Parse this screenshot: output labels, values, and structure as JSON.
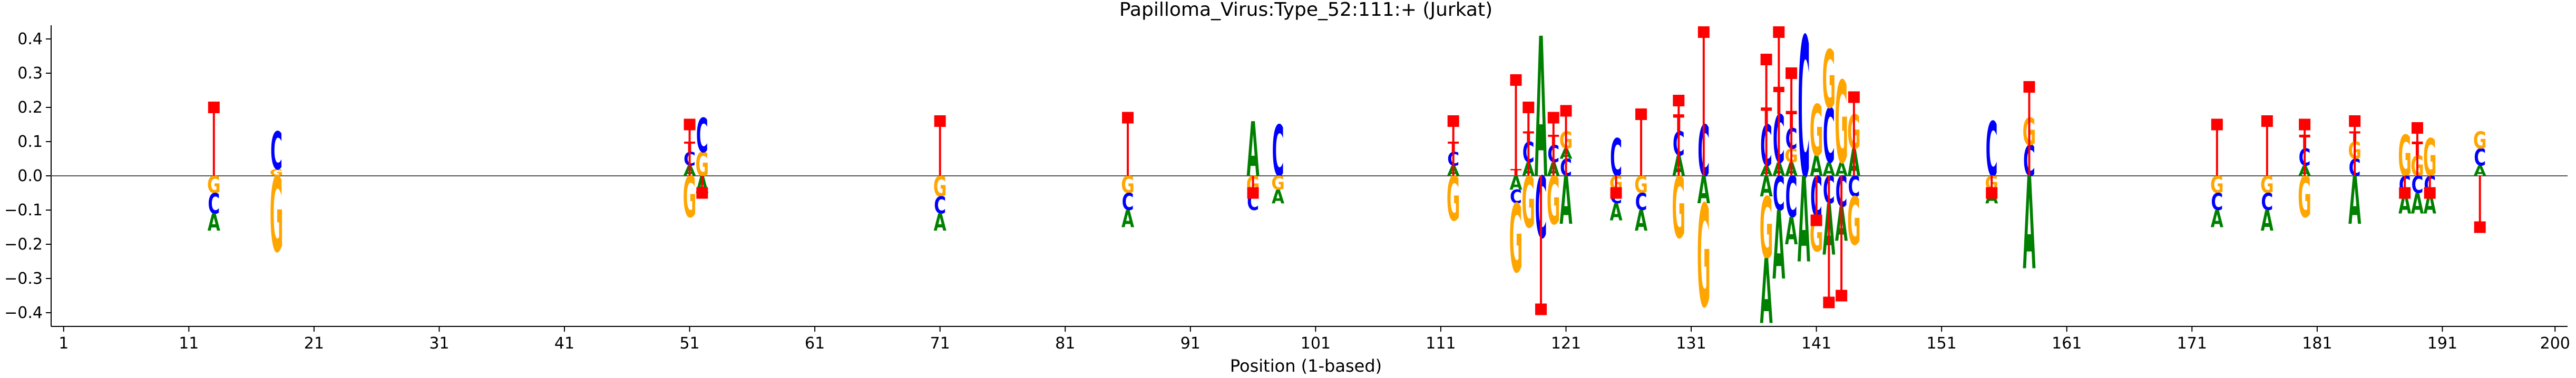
{
  "chart_data": {
    "type": "sequence-logo",
    "title": "Papilloma_Virus:Type_52:111:+  (Jurkat)",
    "xlabel": "Position (1-based)",
    "ylabel": "",
    "xlim": [
      0,
      201
    ],
    "ylim": [
      -0.44,
      0.44
    ],
    "x_ticks": [
      1,
      11,
      21,
      31,
      41,
      51,
      61,
      71,
      81,
      91,
      101,
      111,
      121,
      131,
      141,
      151,
      161,
      171,
      181,
      191,
      200
    ],
    "y_ticks": [
      0.4,
      0.3,
      0.2,
      0.1,
      0.0,
      -0.1,
      -0.2,
      -0.3,
      -0.4
    ],
    "y_tick_labels": [
      "0.4",
      "0.3",
      "0.2",
      "0.1",
      "0.0",
      "−0.1",
      "−0.2",
      "−0.3",
      "−0.4"
    ],
    "colors": {
      "A": "#008000",
      "C": "#0000ff",
      "G": "#ffa500",
      "T": "#ff0000",
      "marker": "#ff0000"
    },
    "positions": [
      {
        "pos": 13,
        "above": [],
        "below": [
          {
            "b": "G",
            "h": 0.05
          },
          {
            "b": "C",
            "h": 0.06
          },
          {
            "b": "A",
            "h": 0.05
          }
        ],
        "marker": 0.2
      },
      {
        "pos": 18,
        "above": [
          {
            "b": "G",
            "h": 0.02
          },
          {
            "b": "C",
            "h": 0.11
          }
        ],
        "below": [
          {
            "b": "G",
            "h": 0.22
          }
        ],
        "marker": null
      },
      {
        "pos": 51,
        "above": [
          {
            "b": "A",
            "h": 0.03
          },
          {
            "b": "C",
            "h": 0.04
          },
          {
            "b": "T",
            "h": 0.03
          }
        ],
        "below": [
          {
            "b": "G",
            "h": 0.12
          }
        ],
        "marker": 0.15
      },
      {
        "pos": 52,
        "above": [
          {
            "b": "G",
            "h": 0.07
          },
          {
            "b": "C",
            "h": 0.1
          }
        ],
        "below": [
          {
            "b": "A",
            "h": 0.05
          }
        ],
        "marker": -0.05
      },
      {
        "pos": 71,
        "above": [],
        "below": [
          {
            "b": "G",
            "h": 0.06
          },
          {
            "b": "C",
            "h": 0.05
          },
          {
            "b": "A",
            "h": 0.05
          }
        ],
        "marker": 0.16
      },
      {
        "pos": 86,
        "above": [],
        "below": [
          {
            "b": "G",
            "h": 0.05
          },
          {
            "b": "C",
            "h": 0.05
          },
          {
            "b": "A",
            "h": 0.05
          }
        ],
        "marker": 0.17
      },
      {
        "pos": 96,
        "above": [
          {
            "b": "A",
            "h": 0.16
          }
        ],
        "below": [
          {
            "b": "G",
            "h": 0.05
          },
          {
            "b": "C",
            "h": 0.05
          }
        ],
        "marker": -0.05
      },
      {
        "pos": 98,
        "above": [
          {
            "b": "C",
            "h": 0.15
          }
        ],
        "below": [
          {
            "b": "G",
            "h": 0.04
          },
          {
            "b": "A",
            "h": 0.04
          }
        ],
        "marker": null
      },
      {
        "pos": 112,
        "above": [
          {
            "b": "A",
            "h": 0.03
          },
          {
            "b": "C",
            "h": 0.04
          },
          {
            "b": "T",
            "h": 0.03
          }
        ],
        "below": [
          {
            "b": "G",
            "h": 0.13
          }
        ],
        "marker": 0.16
      },
      {
        "pos": 117,
        "above": [
          {
            "b": "T",
            "h": 0.02
          }
        ],
        "below": [
          {
            "b": "A",
            "h": 0.04
          },
          {
            "b": "C",
            "h": 0.04
          },
          {
            "b": "G",
            "h": 0.2
          }
        ],
        "marker": 0.28
      },
      {
        "pos": 118,
        "above": [
          {
            "b": "A",
            "h": 0.04
          },
          {
            "b": "C",
            "h": 0.06
          },
          {
            "b": "T",
            "h": 0.03
          }
        ],
        "below": [
          {
            "b": "G",
            "h": 0.15
          }
        ],
        "marker": 0.2
      },
      {
        "pos": 119,
        "above": [
          {
            "b": "A",
            "h": 0.41
          }
        ],
        "below": [
          {
            "b": "C",
            "h": 0.18
          }
        ],
        "marker": -0.39
      },
      {
        "pos": 120,
        "above": [
          {
            "b": "A",
            "h": 0.04
          },
          {
            "b": "C",
            "h": 0.05
          },
          {
            "b": "T",
            "h": 0.03
          }
        ],
        "below": [
          {
            "b": "G",
            "h": 0.14
          }
        ],
        "marker": 0.17
      },
      {
        "pos": 121,
        "above": [
          {
            "b": "C",
            "h": 0.05
          },
          {
            "b": "A",
            "h": 0.03
          },
          {
            "b": "G",
            "h": 0.05
          }
        ],
        "below": [
          {
            "b": "A",
            "h": 0.14
          }
        ],
        "marker": 0.19
      },
      {
        "pos": 125,
        "above": [
          {
            "b": "C",
            "h": 0.11
          }
        ],
        "below": [
          {
            "b": "G",
            "h": 0.04
          },
          {
            "b": "C",
            "h": 0.04
          },
          {
            "b": "A",
            "h": 0.05
          }
        ],
        "marker": -0.05
      },
      {
        "pos": 127,
        "above": [],
        "below": [
          {
            "b": "G",
            "h": 0.05
          },
          {
            "b": "C",
            "h": 0.05
          },
          {
            "b": "A",
            "h": 0.06
          }
        ],
        "marker": 0.18
      },
      {
        "pos": 130,
        "above": [
          {
            "b": "A",
            "h": 0.06
          },
          {
            "b": "C",
            "h": 0.07
          },
          {
            "b": "T",
            "h": 0.05
          }
        ],
        "below": [
          {
            "b": "G",
            "h": 0.18
          }
        ],
        "marker": 0.22
      },
      {
        "pos": 132,
        "above": [
          {
            "b": "C",
            "h": 0.15
          }
        ],
        "below": [
          {
            "b": "A",
            "h": 0.08
          },
          {
            "b": "G",
            "h": 0.3
          }
        ],
        "marker": 0.42
      },
      {
        "pos": 137,
        "above": [
          {
            "b": "A",
            "h": 0.03
          },
          {
            "b": "C",
            "h": 0.12
          },
          {
            "b": "T",
            "h": 0.05
          }
        ],
        "below": [
          {
            "b": "A",
            "h": 0.06
          },
          {
            "b": "G",
            "h": 0.18
          },
          {
            "b": "A",
            "h": 0.19
          }
        ],
        "marker": 0.34
      },
      {
        "pos": 138,
        "above": [
          {
            "b": "A",
            "h": 0.04
          },
          {
            "b": "C",
            "h": 0.14
          },
          {
            "b": "T",
            "h": 0.08
          }
        ],
        "below": [
          {
            "b": "C",
            "h": 0.1
          },
          {
            "b": "A",
            "h": 0.2
          }
        ],
        "marker": 0.42
      },
      {
        "pos": 139,
        "above": [
          {
            "b": "A",
            "h": 0.04
          },
          {
            "b": "G",
            "h": 0.04
          },
          {
            "b": "C",
            "h": 0.06
          },
          {
            "b": "T",
            "h": 0.05
          }
        ],
        "below": [
          {
            "b": "C",
            "h": 0.12
          },
          {
            "b": "A",
            "h": 0.08
          }
        ],
        "marker": 0.3
      },
      {
        "pos": 140,
        "above": [
          {
            "b": "C",
            "h": 0.41
          }
        ],
        "below": [
          {
            "b": "A",
            "h": 0.25
          }
        ],
        "marker": null
      },
      {
        "pos": 141,
        "above": [
          {
            "b": "A",
            "h": 0.06
          },
          {
            "b": "G",
            "h": 0.15
          }
        ],
        "below": [
          {
            "b": "C",
            "h": 0.12
          },
          {
            "b": "G",
            "h": 0.1
          }
        ],
        "marker": -0.13
      },
      {
        "pos": 142,
        "above": [
          {
            "b": "A",
            "h": 0.04
          },
          {
            "b": "C",
            "h": 0.16
          },
          {
            "b": "G",
            "h": 0.17
          }
        ],
        "below": [
          {
            "b": "C",
            "h": 0.08
          },
          {
            "b": "A",
            "h": 0.15
          }
        ],
        "marker": -0.37
      },
      {
        "pos": 143,
        "above": [
          {
            "b": "A",
            "h": 0.04
          },
          {
            "b": "G",
            "h": 0.24
          }
        ],
        "below": [
          {
            "b": "C",
            "h": 0.09
          },
          {
            "b": "A",
            "h": 0.1
          }
        ],
        "marker": -0.35
      },
      {
        "pos": 144,
        "above": [
          {
            "b": "A",
            "h": 0.08
          },
          {
            "b": "G",
            "h": 0.1
          }
        ],
        "below": [
          {
            "b": "C",
            "h": 0.06
          },
          {
            "b": "G",
            "h": 0.14
          }
        ],
        "marker": 0.23
      },
      {
        "pos": 155,
        "above": [
          {
            "b": "C",
            "h": 0.16
          }
        ],
        "below": [
          {
            "b": "G",
            "h": 0.04
          },
          {
            "b": "A",
            "h": 0.04
          }
        ],
        "marker": -0.05
      },
      {
        "pos": 158,
        "above": [
          {
            "b": "C",
            "h": 0.09
          },
          {
            "b": "G",
            "h": 0.08
          }
        ],
        "below": [
          {
            "b": "A",
            "h": 0.27
          }
        ],
        "marker": 0.26
      },
      {
        "pos": 173,
        "above": [],
        "below": [
          {
            "b": "G",
            "h": 0.05
          },
          {
            "b": "C",
            "h": 0.05
          },
          {
            "b": "A",
            "h": 0.05
          }
        ],
        "marker": 0.15
      },
      {
        "pos": 177,
        "above": [],
        "below": [
          {
            "b": "G",
            "h": 0.05
          },
          {
            "b": "C",
            "h": 0.05
          },
          {
            "b": "A",
            "h": 0.06
          }
        ],
        "marker": 0.16
      },
      {
        "pos": 180,
        "above": [
          {
            "b": "A",
            "h": 0.03
          },
          {
            "b": "C",
            "h": 0.05
          },
          {
            "b": "T",
            "h": 0.04
          }
        ],
        "below": [
          {
            "b": "G",
            "h": 0.12
          }
        ],
        "marker": 0.15
      },
      {
        "pos": 184,
        "above": [
          {
            "b": "C",
            "h": 0.05
          },
          {
            "b": "G",
            "h": 0.05
          },
          {
            "b": "T",
            "h": 0.03
          }
        ],
        "below": [
          {
            "b": "A",
            "h": 0.14
          }
        ],
        "marker": 0.16
      },
      {
        "pos": 188,
        "above": [
          {
            "b": "G",
            "h": 0.12
          }
        ],
        "below": [
          {
            "b": "C",
            "h": 0.05
          },
          {
            "b": "A",
            "h": 0.06
          }
        ],
        "marker": -0.05
      },
      {
        "pos": 189,
        "above": [
          {
            "b": "G",
            "h": 0.06
          },
          {
            "b": "T",
            "h": 0.04
          }
        ],
        "below": [
          {
            "b": "C",
            "h": 0.05
          },
          {
            "b": "A",
            "h": 0.06
          }
        ],
        "marker": 0.14
      },
      {
        "pos": 190,
        "above": [
          {
            "b": "G",
            "h": 0.11
          }
        ],
        "below": [
          {
            "b": "C",
            "h": 0.05
          },
          {
            "b": "A",
            "h": 0.06
          }
        ],
        "marker": -0.05
      },
      {
        "pos": 194,
        "above": [
          {
            "b": "A",
            "h": 0.03
          },
          {
            "b": "C",
            "h": 0.05
          },
          {
            "b": "G",
            "h": 0.05
          }
        ],
        "below": [],
        "marker": -0.15
      }
    ]
  }
}
